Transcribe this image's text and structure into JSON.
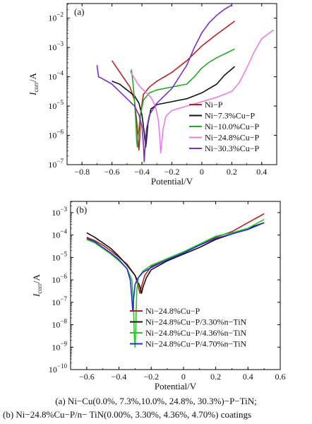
{
  "chart_data": [
    {
      "type": "line",
      "panel_label": "(a)",
      "xlabel": "Potential/V",
      "ylabel_main": "I",
      "ylabel_sub": "corr",
      "ylabel_unit": "/A",
      "xlim": [
        -0.9,
        0.5
      ],
      "ylim_exp": [
        -7,
        -1.5
      ],
      "y_scale": "log",
      "x_ticks": [
        "−0.8",
        "−0.6",
        "−0.4",
        "−0.2",
        "0",
        "0.2",
        "0.4"
      ],
      "x_tick_values": [
        -0.8,
        -0.6,
        -0.4,
        -0.2,
        0,
        0.2,
        0.4
      ],
      "y_tick_exps": [
        -7,
        -6,
        -5,
        -4,
        -3,
        -2
      ],
      "legend_position": "center-right",
      "series": [
        {
          "name": "Ni−P",
          "color": "#b22222",
          "points": [
            [
              -0.6,
              -3.45
            ],
            [
              -0.56,
              -3.75
            ],
            [
              -0.52,
              -4.05
            ],
            [
              -0.48,
              -4.35
            ],
            [
              -0.45,
              -4.8
            ],
            [
              -0.435,
              -5.5
            ],
            [
              -0.425,
              -6.2
            ],
            [
              -0.42,
              -6.5
            ],
            [
              -0.415,
              -6.1
            ],
            [
              -0.41,
              -5.3
            ],
            [
              -0.39,
              -4.6
            ],
            [
              -0.35,
              -4.35
            ],
            [
              -0.3,
              -4.15
            ],
            [
              -0.2,
              -3.85
            ],
            [
              -0.1,
              -3.45
            ],
            [
              0.0,
              -2.95
            ],
            [
              0.1,
              -2.55
            ],
            [
              0.22,
              -2.1
            ]
          ]
        },
        {
          "name": "Ni−7.3%Cu−P",
          "color": "#111111",
          "points": [
            [
              -0.6,
              -4.15
            ],
            [
              -0.55,
              -4.25
            ],
            [
              -0.5,
              -4.45
            ],
            [
              -0.45,
              -4.65
            ],
            [
              -0.42,
              -4.9
            ],
            [
              -0.4,
              -5.3
            ],
            [
              -0.385,
              -5.9
            ],
            [
              -0.375,
              -6.4
            ],
            [
              -0.37,
              -6.2
            ],
            [
              -0.36,
              -5.6
            ],
            [
              -0.34,
              -5.1
            ],
            [
              -0.3,
              -4.95
            ],
            [
              -0.2,
              -4.85
            ],
            [
              -0.1,
              -4.75
            ],
            [
              0.0,
              -4.55
            ],
            [
              0.1,
              -4.25
            ],
            [
              0.15,
              -3.95
            ],
            [
              0.22,
              -3.65
            ]
          ]
        },
        {
          "name": "Ni−10.0%Cu−P",
          "color": "#22aa22",
          "points": [
            [
              -0.47,
              -3.75
            ],
            [
              -0.46,
              -4.2
            ],
            [
              -0.45,
              -4.8
            ],
            [
              -0.44,
              -5.6
            ],
            [
              -0.435,
              -6.2
            ],
            [
              -0.43,
              -6.4
            ],
            [
              -0.425,
              -6.0
            ],
            [
              -0.41,
              -5.3
            ],
            [
              -0.39,
              -4.8
            ],
            [
              -0.35,
              -4.55
            ],
            [
              -0.3,
              -4.45
            ],
            [
              -0.2,
              -4.35
            ],
            [
              -0.1,
              -4.25
            ],
            [
              -0.05,
              -4.0
            ],
            [
              0.0,
              -3.7
            ],
            [
              0.05,
              -3.5
            ],
            [
              0.1,
              -3.35
            ],
            [
              0.16,
              -3.2
            ],
            [
              0.22,
              -3.05
            ]
          ]
        },
        {
          "name": "Ni−24.8%Cu−P",
          "color": "#e87de8",
          "points": [
            [
              -0.48,
              -3.8
            ],
            [
              -0.45,
              -4.05
            ],
            [
              -0.42,
              -4.3
            ],
            [
              -0.38,
              -4.5
            ],
            [
              -0.34,
              -4.7
            ],
            [
              -0.31,
              -5.0
            ],
            [
              -0.29,
              -5.5
            ],
            [
              -0.28,
              -6.1
            ],
            [
              -0.275,
              -6.6
            ],
            [
              -0.27,
              -6.4
            ],
            [
              -0.26,
              -5.8
            ],
            [
              -0.24,
              -5.35
            ],
            [
              -0.2,
              -5.15
            ],
            [
              -0.1,
              -5.0
            ],
            [
              0.0,
              -4.85
            ],
            [
              0.1,
              -4.7
            ],
            [
              0.2,
              -4.5
            ],
            [
              0.25,
              -4.2
            ],
            [
              0.3,
              -3.7
            ],
            [
              0.35,
              -3.15
            ],
            [
              0.4,
              -2.7
            ],
            [
              0.48,
              -2.4
            ]
          ]
        },
        {
          "name": "Ni−30.3%Cu−P",
          "color": "#7a2fc4",
          "points": [
            [
              -0.7,
              -3.6
            ],
            [
              -0.69,
              -4.0
            ],
            [
              -0.67,
              -4.05
            ],
            [
              -0.6,
              -4.25
            ],
            [
              -0.55,
              -4.5
            ],
            [
              -0.5,
              -4.75
            ],
            [
              -0.45,
              -5.0
            ],
            [
              -0.42,
              -5.3
            ],
            [
              -0.4,
              -5.7
            ],
            [
              -0.39,
              -6.3
            ],
            [
              -0.385,
              -6.9
            ],
            [
              -0.38,
              -6.5
            ],
            [
              -0.37,
              -5.8
            ],
            [
              -0.35,
              -5.3
            ],
            [
              -0.3,
              -4.9
            ],
            [
              -0.2,
              -4.4
            ],
            [
              -0.1,
              -3.6
            ],
            [
              -0.05,
              -3.0
            ],
            [
              0.0,
              -2.5
            ],
            [
              0.05,
              -2.15
            ],
            [
              0.1,
              -1.9
            ],
            [
              0.15,
              -1.7
            ],
            [
              0.2,
              -1.55
            ]
          ]
        }
      ]
    },
    {
      "type": "line",
      "panel_label": "(b)",
      "xlabel": "Potential/V",
      "ylabel_main": "I",
      "ylabel_sub": "corr",
      "ylabel_unit": "/A",
      "xlim": [
        -0.7,
        0.6
      ],
      "ylim_exp": [
        -10,
        -2.5
      ],
      "y_scale": "log",
      "x_ticks": [
        "−0.6",
        "−0.4",
        "−0.2",
        "0",
        "0.2",
        "0.4",
        "0.6"
      ],
      "x_tick_values": [
        -0.6,
        -0.4,
        -0.2,
        0,
        0.2,
        0.4,
        0.6
      ],
      "y_tick_exps": [
        -10,
        -9,
        -8,
        -7,
        -6,
        -5,
        -4,
        -3
      ],
      "legend_position": "lower-right",
      "series": [
        {
          "name": "Ni−24.8%Cu−P",
          "color": "#b22222",
          "points": [
            [
              -0.6,
              -4.1
            ],
            [
              -0.55,
              -4.25
            ],
            [
              -0.5,
              -4.45
            ],
            [
              -0.45,
              -4.7
            ],
            [
              -0.4,
              -5.0
            ],
            [
              -0.35,
              -5.3
            ],
            [
              -0.3,
              -5.8
            ],
            [
              -0.28,
              -6.3
            ],
            [
              -0.27,
              -6.6
            ],
            [
              -0.26,
              -6.3
            ],
            [
              -0.24,
              -5.8
            ],
            [
              -0.2,
              -5.4
            ],
            [
              -0.1,
              -5.05
            ],
            [
              0.0,
              -4.75
            ],
            [
              0.1,
              -4.45
            ],
            [
              0.2,
              -4.1
            ],
            [
              0.3,
              -3.85
            ],
            [
              0.4,
              -3.45
            ],
            [
              0.5,
              -3.05
            ]
          ]
        },
        {
          "name": "Ni−24.8%Cu−P/3.30%n−TiN",
          "color": "#111111",
          "points": [
            [
              -0.6,
              -3.9
            ],
            [
              -0.55,
              -4.1
            ],
            [
              -0.5,
              -4.35
            ],
            [
              -0.45,
              -4.6
            ],
            [
              -0.4,
              -4.95
            ],
            [
              -0.35,
              -5.35
            ],
            [
              -0.3,
              -5.8
            ],
            [
              -0.27,
              -6.3
            ],
            [
              -0.26,
              -6.6
            ],
            [
              -0.25,
              -6.3
            ],
            [
              -0.23,
              -5.9
            ],
            [
              -0.2,
              -5.55
            ],
            [
              -0.1,
              -5.15
            ],
            [
              0.0,
              -4.85
            ],
            [
              0.1,
              -4.55
            ],
            [
              0.2,
              -4.2
            ],
            [
              0.3,
              -3.95
            ],
            [
              0.4,
              -3.7
            ],
            [
              0.5,
              -3.45
            ]
          ]
        },
        {
          "name": "Ni−24.8%Cu−P/4.36%n−TiN",
          "color": "#22cc22",
          "points": [
            [
              -0.6,
              -4.2
            ],
            [
              -0.55,
              -4.35
            ],
            [
              -0.5,
              -4.6
            ],
            [
              -0.45,
              -4.85
            ],
            [
              -0.4,
              -5.15
            ],
            [
              -0.35,
              -5.5
            ],
            [
              -0.32,
              -6.0
            ],
            [
              -0.31,
              -7.0
            ],
            [
              -0.305,
              -8.5
            ],
            [
              -0.3,
              -9.0
            ],
            [
              -0.295,
              -8.0
            ],
            [
              -0.29,
              -6.5
            ],
            [
              -0.28,
              -5.9
            ],
            [
              -0.25,
              -5.6
            ],
            [
              -0.2,
              -5.35
            ],
            [
              -0.1,
              -5.05
            ],
            [
              0.0,
              -4.75
            ],
            [
              0.1,
              -4.4
            ],
            [
              0.2,
              -4.05
            ],
            [
              0.3,
              -3.9
            ],
            [
              0.4,
              -3.7
            ],
            [
              0.5,
              -3.3
            ]
          ]
        },
        {
          "name": "Ni−24.8%Cu−P/4.70%n−TiN",
          "color": "#2a2ad6",
          "points": [
            [
              -0.6,
              -4.15
            ],
            [
              -0.55,
              -4.3
            ],
            [
              -0.5,
              -4.55
            ],
            [
              -0.45,
              -4.8
            ],
            [
              -0.4,
              -5.1
            ],
            [
              -0.35,
              -5.5
            ],
            [
              -0.33,
              -6.0
            ],
            [
              -0.32,
              -6.8
            ],
            [
              -0.315,
              -7.4
            ],
            [
              -0.31,
              -6.9
            ],
            [
              -0.3,
              -6.2
            ],
            [
              -0.28,
              -5.9
            ],
            [
              -0.25,
              -5.65
            ],
            [
              -0.2,
              -5.45
            ],
            [
              -0.1,
              -5.1
            ],
            [
              0.0,
              -4.8
            ],
            [
              0.1,
              -4.45
            ],
            [
              0.2,
              -4.15
            ],
            [
              0.3,
              -3.95
            ],
            [
              0.4,
              -3.75
            ],
            [
              0.5,
              -3.45
            ]
          ]
        }
      ]
    }
  ],
  "captions": {
    "line_a": "(a) Ni−Cu(0.0%, 7.3%,10.0%,  24.8%,  30.3%)−P−TiN;",
    "line_b": "(b)  Ni−24.8%Cu−P/n− TiN(0.00%, 3.30%, 4.36%, 4.70%) coatings"
  }
}
